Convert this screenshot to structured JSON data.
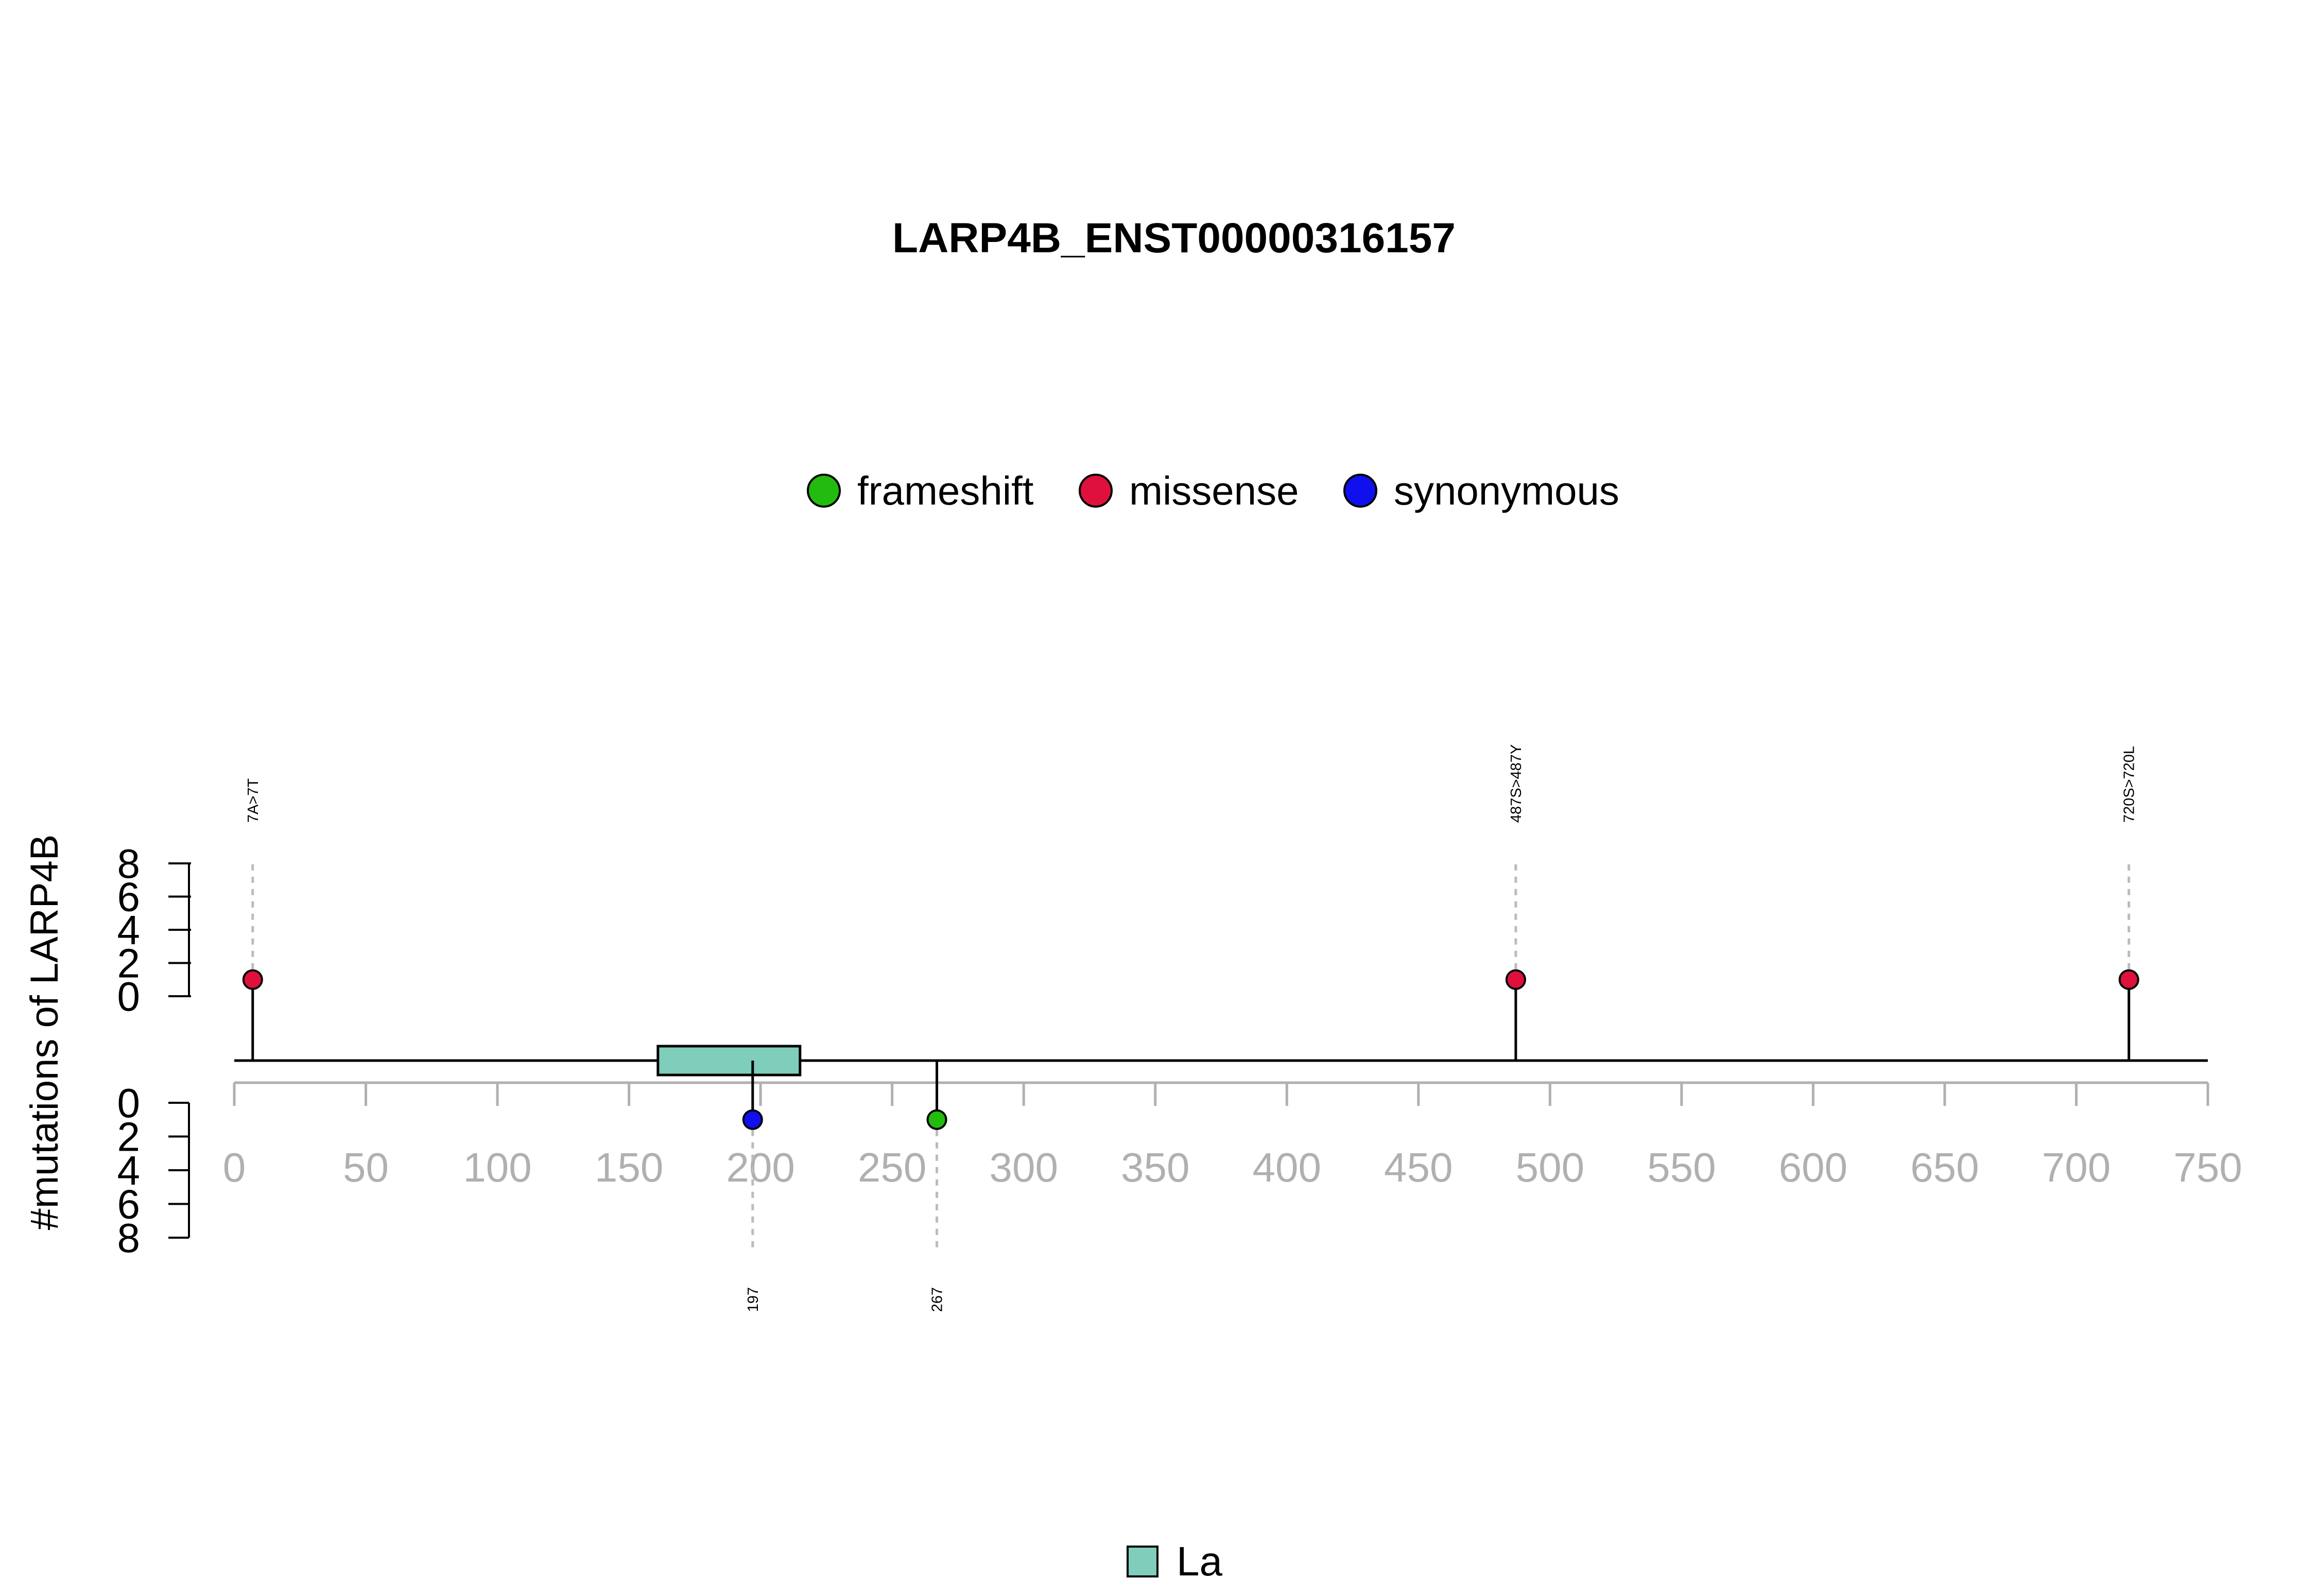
{
  "chart_data": {
    "type": "lollipop",
    "title": "LARP4B_ENST00000316157",
    "ylabel": "#mutations of LARP4B",
    "xlim": [
      0,
      750
    ],
    "x_ticks": [
      0,
      50,
      100,
      150,
      200,
      250,
      300,
      350,
      400,
      450,
      500,
      550,
      600,
      650,
      700,
      750
    ],
    "y_ticks": [
      0,
      2,
      4,
      6,
      8
    ],
    "ylim": [
      0,
      8
    ],
    "colors": {
      "frameshift": "#22bb0f",
      "missense": "#e0103c",
      "synonymous": "#1010ee",
      "domain_fill": "#7fcdbb",
      "axis_gray": "#b0b0b0",
      "guide_gray": "#bbbbbb"
    },
    "legend": [
      {
        "label": "frameshift",
        "color": "#22bb0f"
      },
      {
        "label": "missense",
        "color": "#e0103c"
      },
      {
        "label": "synonymous",
        "color": "#1010ee"
      }
    ],
    "mutations": [
      {
        "position": 7,
        "label": "7A>7T",
        "type": "missense",
        "count": 1,
        "side": "top"
      },
      {
        "position": 487,
        "label": "487S>487Y",
        "type": "missense",
        "count": 1,
        "side": "top"
      },
      {
        "position": 720,
        "label": "720S>720L",
        "type": "missense",
        "count": 1,
        "side": "top"
      },
      {
        "position": 197,
        "label": "197",
        "type": "synonymous",
        "count": 1,
        "side": "bottom"
      },
      {
        "position": 267,
        "label": "267",
        "type": "frameshift",
        "count": 1,
        "side": "bottom"
      }
    ],
    "domains": [
      {
        "name": "La",
        "start": 161,
        "end": 215,
        "color": "#7fcdbb"
      }
    ],
    "domain_legend": [
      {
        "label": "La",
        "color": "#7fcdbb"
      }
    ]
  }
}
